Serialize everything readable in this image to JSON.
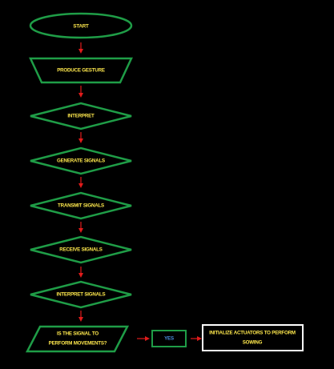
{
  "colors": {
    "background": "#000000",
    "shape_stroke": "#1f9d47",
    "shape_text": "#ffe94d",
    "arrow": "#e01b1b",
    "yes_text": "#4a8fe0",
    "output_stroke": "#ffffff",
    "output_text": "#ffe94d"
  },
  "flowchart": {
    "start": "START",
    "produce": "PRODUCE GESTURE",
    "interpret": "INTERPRET",
    "generate": "GENERATE SIGNALS",
    "transmit": "TRANSMIT SIGNALS",
    "receive": "RECEIVE SIGNALS",
    "interpret_signals": "INTERPRET SIGNALS",
    "decision_line1": "IS THE SIGNAL TO",
    "decision_line2": "PERFORM MOVEMENTS?",
    "yes": "YES",
    "output_line1": "INITIALIZE ACTUATORS TO PERFORM",
    "output_line2": "SOWING"
  }
}
